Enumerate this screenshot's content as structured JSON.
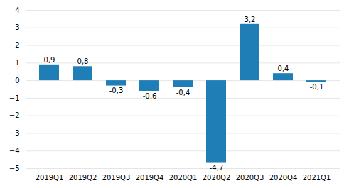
{
  "chart_data": {
    "type": "bar",
    "categories": [
      "2019Q1",
      "2019Q2",
      "2019Q3",
      "2019Q4",
      "2020Q1",
      "2020Q2",
      "2020Q3",
      "2020Q4",
      "2021Q1"
    ],
    "values": [
      0.9,
      0.8,
      -0.3,
      -0.6,
      -0.4,
      -4.7,
      3.2,
      0.4,
      -0.1
    ],
    "value_labels": [
      "0,9",
      "0,8",
      "-0,3",
      "-0,6",
      "-0,4",
      "-4,7",
      "3,2",
      "0,4",
      "-0,1"
    ],
    "color": "#1f7eb5",
    "ylim": [
      -5,
      4
    ],
    "yticks": [
      -5,
      -4,
      -3,
      -2,
      -1,
      0,
      1,
      2,
      3,
      4
    ],
    "grid": true,
    "data_labels": true
  }
}
